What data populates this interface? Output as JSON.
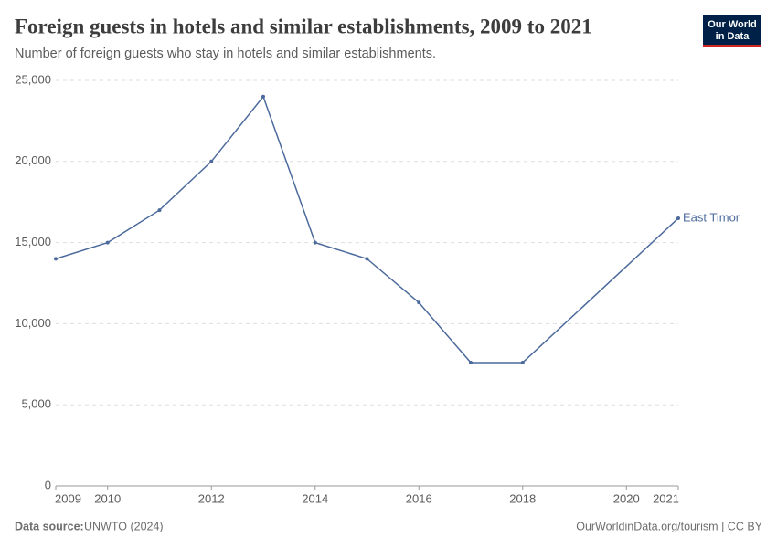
{
  "chart_data": {
    "type": "line",
    "title": "Foreign guests in hotels and similar establishments, 2009 to 2021",
    "subtitle": "Number of foreign guests who stay in hotels and similar establishments.",
    "logo": [
      "Our World",
      "in Data"
    ],
    "source_label": "Data source:",
    "source": "UNWTO (2024)",
    "footer_right": "OurWorldinData.org/tourism | CC BY",
    "x": [
      2009,
      2010,
      2011,
      2012,
      2013,
      2014,
      2015,
      2016,
      2017,
      2018,
      2021
    ],
    "series": [
      {
        "name": "East Timor",
        "color": "#4c6a9c",
        "values": [
          14000,
          15000,
          17000,
          20000,
          24000,
          15000,
          14000,
          11300,
          7600,
          7600,
          16500
        ]
      }
    ],
    "xlim": [
      2009,
      2021
    ],
    "xticks": [
      2009,
      2010,
      2012,
      2014,
      2016,
      2018,
      2020,
      2021
    ],
    "ylim": [
      0,
      25000
    ],
    "yticks": [
      0,
      {
        "value": 5000,
        "label": "5,000"
      },
      {
        "value": 10000,
        "label": "10,000"
      },
      {
        "value": 15000,
        "label": "15,000"
      },
      {
        "value": 20000,
        "label": "20,000"
      },
      {
        "value": 25000,
        "label": "25,000"
      }
    ],
    "grid": true
  }
}
